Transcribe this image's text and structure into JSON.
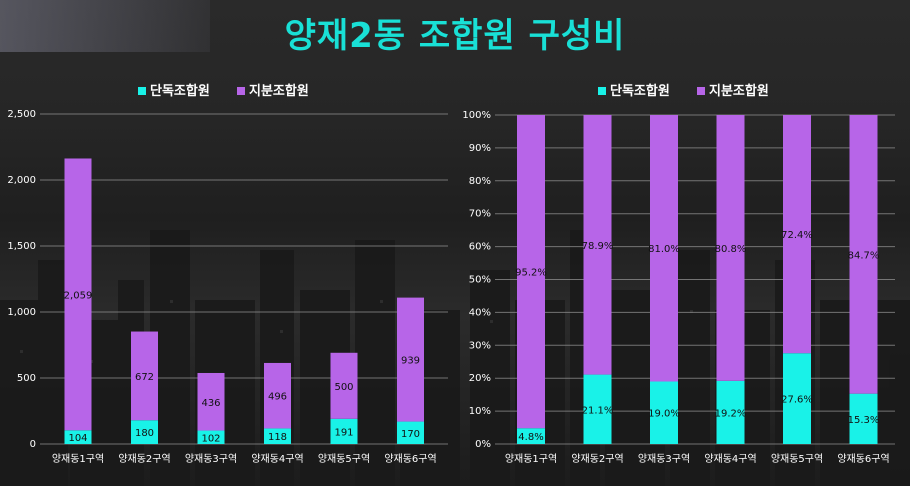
{
  "title": "양재2동 조합원 구성비",
  "colors": {
    "title": "#19e0d6",
    "sole": "#19f2e8",
    "share": "#b765e8",
    "axis_text": "#ffffff",
    "grid": "#8a8a8a"
  },
  "chart_data": [
    {
      "type": "bar",
      "stacked": true,
      "categories": [
        "양재동1구역",
        "양재동2구역",
        "양재동3구역",
        "양재동4구역",
        "양재동5구역",
        "양재동6구역"
      ],
      "series": [
        {
          "name": "단독조합원",
          "values": [
            104,
            180,
            102,
            118,
            191,
            170
          ],
          "labels": [
            "104",
            "180",
            "102",
            "118",
            "191",
            "170"
          ]
        },
        {
          "name": "지분조합원",
          "values": [
            2059,
            672,
            436,
            496,
            500,
            939
          ],
          "labels": [
            "2,059",
            "672",
            "436",
            "496",
            "500",
            "939"
          ]
        }
      ],
      "ylim": [
        0,
        2500
      ],
      "yticks": [
        0,
        500,
        1000,
        1500,
        2000,
        2500
      ],
      "ytick_labels": [
        "0",
        "500",
        "1,000",
        "1,500",
        "2,000",
        "2,500"
      ],
      "legend": "top-center",
      "grid": true
    },
    {
      "type": "bar",
      "stacked": true,
      "percent": true,
      "categories": [
        "양재동1구역",
        "양재동2구역",
        "양재동3구역",
        "양재동4구역",
        "양재동5구역",
        "양재동6구역"
      ],
      "series": [
        {
          "name": "단독조합원",
          "values": [
            4.8,
            21.1,
            19.0,
            19.2,
            27.6,
            15.3
          ],
          "labels": [
            "4.8%",
            "21.1%",
            "19.0%",
            "19.2%",
            "27.6%",
            "15.3%"
          ]
        },
        {
          "name": "지분조합원",
          "values": [
            95.2,
            78.9,
            81.0,
            80.8,
            72.4,
            84.7
          ],
          "labels": [
            "95.2%",
            "78.9%",
            "81.0%",
            "80.8%",
            "72.4%",
            "84.7%"
          ]
        }
      ],
      "ylim": [
        0,
        100
      ],
      "yticks": [
        0,
        10,
        20,
        30,
        40,
        50,
        60,
        70,
        80,
        90,
        100
      ],
      "ytick_labels": [
        "0%",
        "10%",
        "20%",
        "30%",
        "40%",
        "50%",
        "60%",
        "70%",
        "80%",
        "90%",
        "100%"
      ],
      "legend": "top-center",
      "grid": true
    }
  ]
}
